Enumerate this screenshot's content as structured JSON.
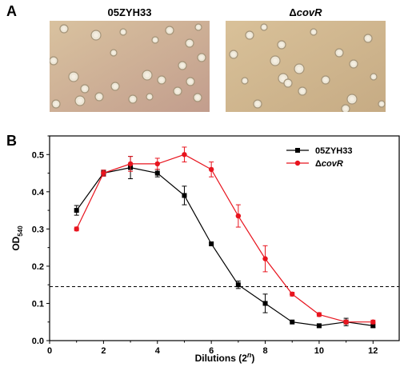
{
  "panels": {
    "a_letter": "A",
    "b_letter": "B"
  },
  "photos": {
    "left_title": "05ZYH33",
    "right_title_prefix": "Δ",
    "right_title_gene": "covR",
    "left_bg_color": "#c9ab8f",
    "right_bg_color": "#cdb48c",
    "colony_color": "#ede6d6"
  },
  "chart_data": {
    "type": "line",
    "xlabel_text": "Dilutions (",
    "xlabel_power": "2",
    "xlabel_exp": "n",
    "xlabel_close": ")",
    "ylabel_main": "OD",
    "ylabel_sub": "540",
    "xlim": [
      0,
      13
    ],
    "ylim": [
      0.0,
      0.55
    ],
    "x_ticks": [
      "0",
      "2",
      "4",
      "6",
      "8",
      "10",
      "12"
    ],
    "y_ticks": [
      "0.0",
      "0.1",
      "0.2",
      "0.3",
      "0.4",
      "0.5"
    ],
    "threshold": 0.145,
    "legend_position": "top-right",
    "series": [
      {
        "name": "05ZYH33",
        "color": "#000000",
        "marker": "square",
        "x": [
          1,
          2,
          3,
          4,
          5,
          6,
          7,
          8,
          9,
          10,
          11,
          12
        ],
        "y": [
          0.35,
          0.45,
          0.465,
          0.45,
          0.39,
          0.26,
          0.15,
          0.1,
          0.05,
          0.04,
          0.05,
          0.04
        ],
        "err": [
          0.013,
          0.008,
          0.03,
          0.01,
          0.025,
          0.0,
          0.01,
          0.025,
          0.0,
          0.005,
          0.01,
          0.005
        ]
      },
      {
        "name_prefix": "Δ",
        "name_gene": "covR",
        "color": "#e8141e",
        "marker": "circle",
        "x": [
          1,
          2,
          3,
          4,
          5,
          6,
          7,
          8,
          9,
          10,
          11,
          12
        ],
        "y": [
          0.3,
          0.45,
          0.475,
          0.475,
          0.5,
          0.46,
          0.335,
          0.22,
          0.125,
          0.07,
          0.05,
          0.05
        ],
        "err": [
          0.005,
          0.008,
          0.02,
          0.015,
          0.02,
          0.02,
          0.03,
          0.035,
          0.005,
          0.005,
          0.005,
          0.005
        ]
      }
    ]
  }
}
